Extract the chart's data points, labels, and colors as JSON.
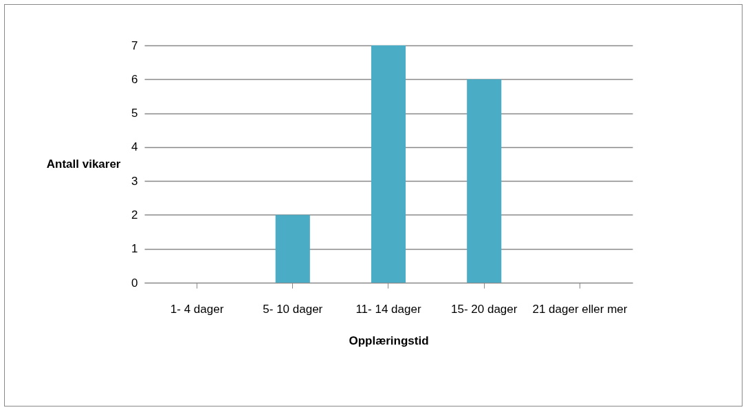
{
  "chart_data": {
    "type": "bar",
    "xlabel": "Opplæringstid",
    "ylabel": "Antall vikarer",
    "categories": [
      "1- 4 dager",
      "5- 10 dager",
      "11- 14 dager",
      "15- 20 dager",
      "21 dager eller mer"
    ],
    "values": [
      0,
      2,
      7,
      6,
      0
    ],
    "color": "#4bacc6",
    "ylim": [
      0,
      7
    ],
    "yticks": [
      0,
      1,
      2,
      3,
      4,
      5,
      6,
      7
    ],
    "grid": "y"
  }
}
